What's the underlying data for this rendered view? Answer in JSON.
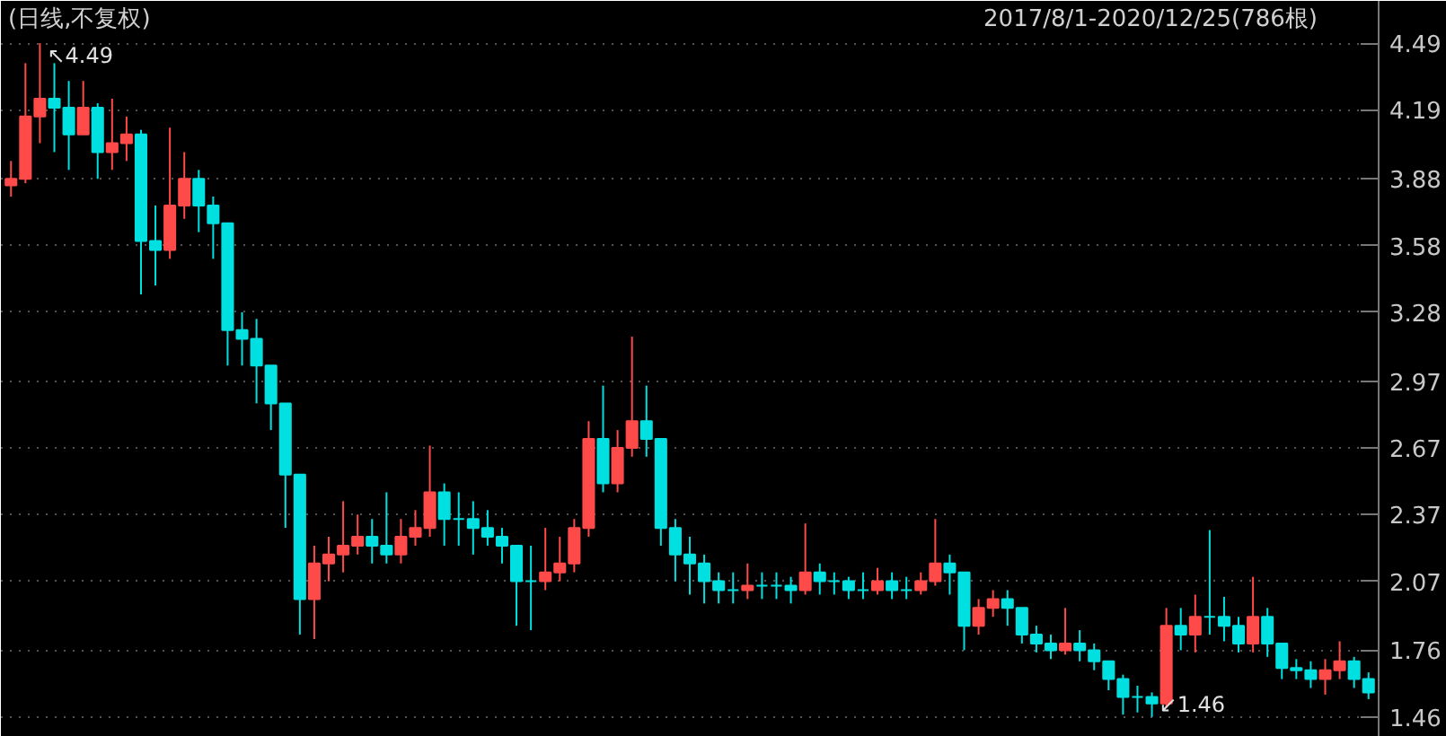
{
  "chart_data": {
    "type": "candlestick",
    "title": "(日线,不复权)",
    "annotations": [
      "2017/8/1-2020/12/25(786根)",
      "↖4.49",
      "↙1.46"
    ],
    "categories": [
      null,
      null,
      null,
      null,
      null,
      null,
      null,
      null,
      null,
      null,
      null,
      null,
      null,
      null,
      null,
      null,
      null,
      null,
      null,
      null,
      null,
      null,
      null,
      null,
      null,
      null,
      null,
      null,
      null,
      null,
      null,
      null,
      null,
      null,
      null,
      null,
      null,
      null,
      null,
      null,
      null,
      null,
      null,
      null,
      null,
      null,
      null,
      null,
      null,
      null,
      null,
      null,
      null,
      null,
      null,
      null,
      null,
      null,
      null,
      null,
      null,
      null,
      null,
      null,
      null,
      null,
      null,
      null,
      null,
      null,
      null,
      null,
      null,
      null,
      null,
      null,
      null,
      null,
      null,
      null,
      null,
      null,
      null,
      null,
      null,
      null,
      null,
      null,
      null,
      null,
      null,
      null,
      null,
      null,
      null
    ],
    "ohlc": [
      [
        3.85,
        3.96,
        3.8,
        3.88
      ],
      [
        3.88,
        4.4,
        3.86,
        4.16
      ],
      [
        4.16,
        4.49,
        4.04,
        4.24
      ],
      [
        4.24,
        4.4,
        4.0,
        4.2
      ],
      [
        4.2,
        4.32,
        3.92,
        4.08
      ],
      [
        4.08,
        4.32,
        4.08,
        4.2
      ],
      [
        4.2,
        4.22,
        3.88,
        4.0
      ],
      [
        4.0,
        4.24,
        3.92,
        4.04
      ],
      [
        4.04,
        4.16,
        3.96,
        4.08
      ],
      [
        4.08,
        4.1,
        3.36,
        3.6
      ],
      [
        3.6,
        3.76,
        3.4,
        3.56
      ],
      [
        3.56,
        4.11,
        3.52,
        3.76
      ],
      [
        3.76,
        4.0,
        3.7,
        3.88
      ],
      [
        3.88,
        3.92,
        3.64,
        3.76
      ],
      [
        3.76,
        3.8,
        3.52,
        3.68
      ],
      [
        3.68,
        3.68,
        3.04,
        3.2
      ],
      [
        3.2,
        3.28,
        3.04,
        3.16
      ],
      [
        3.16,
        3.25,
        2.87,
        3.04
      ],
      [
        3.04,
        3.04,
        2.75,
        2.87
      ],
      [
        2.87,
        2.87,
        2.31,
        2.55
      ],
      [
        2.55,
        2.55,
        1.83,
        1.99
      ],
      [
        1.99,
        2.23,
        1.81,
        2.15
      ],
      [
        2.15,
        2.27,
        2.07,
        2.19
      ],
      [
        2.19,
        2.43,
        2.11,
        2.23
      ],
      [
        2.23,
        2.37,
        2.19,
        2.27
      ],
      [
        2.27,
        2.35,
        2.15,
        2.23
      ],
      [
        2.23,
        2.47,
        2.15,
        2.19
      ],
      [
        2.19,
        2.35,
        2.15,
        2.27
      ],
      [
        2.27,
        2.39,
        2.23,
        2.31
      ],
      [
        2.31,
        2.68,
        2.27,
        2.47
      ],
      [
        2.47,
        2.51,
        2.23,
        2.35
      ],
      [
        2.35,
        2.47,
        2.23,
        2.35
      ],
      [
        2.35,
        2.43,
        2.19,
        2.31
      ],
      [
        2.31,
        2.39,
        2.23,
        2.27
      ],
      [
        2.27,
        2.31,
        2.15,
        2.23
      ],
      [
        2.23,
        2.23,
        1.87,
        2.07
      ],
      [
        2.07,
        2.23,
        1.85,
        2.07
      ],
      [
        2.07,
        2.31,
        2.03,
        2.11
      ],
      [
        2.11,
        2.27,
        2.07,
        2.15
      ],
      [
        2.15,
        2.35,
        2.11,
        2.31
      ],
      [
        2.31,
        2.79,
        2.27,
        2.71
      ],
      [
        2.71,
        2.95,
        2.47,
        2.51
      ],
      [
        2.51,
        2.75,
        2.47,
        2.67
      ],
      [
        2.67,
        3.17,
        2.63,
        2.79
      ],
      [
        2.79,
        2.95,
        2.63,
        2.71
      ],
      [
        2.71,
        2.71,
        2.23,
        2.31
      ],
      [
        2.31,
        2.35,
        2.07,
        2.19
      ],
      [
        2.19,
        2.27,
        2.01,
        2.15
      ],
      [
        2.15,
        2.19,
        1.97,
        2.07
      ],
      [
        2.07,
        2.11,
        1.97,
        2.03
      ],
      [
        2.03,
        2.11,
        1.97,
        2.03
      ],
      [
        2.03,
        2.15,
        1.99,
        2.05
      ],
      [
        2.05,
        2.11,
        1.99,
        2.05
      ],
      [
        2.05,
        2.11,
        1.99,
        2.05
      ],
      [
        2.05,
        2.09,
        1.97,
        2.03
      ],
      [
        2.03,
        2.33,
        2.01,
        2.11
      ],
      [
        2.11,
        2.15,
        2.01,
        2.07
      ],
      [
        2.07,
        2.11,
        2.01,
        2.07
      ],
      [
        2.07,
        2.09,
        1.99,
        2.03
      ],
      [
        2.03,
        2.11,
        1.99,
        2.03
      ],
      [
        2.03,
        2.13,
        2.01,
        2.07
      ],
      [
        2.07,
        2.11,
        1.99,
        2.03
      ],
      [
        2.03,
        2.09,
        1.99,
        2.03
      ],
      [
        2.03,
        2.11,
        2.01,
        2.07
      ],
      [
        2.07,
        2.35,
        2.05,
        2.15
      ],
      [
        2.15,
        2.19,
        2.01,
        2.11
      ],
      [
        2.11,
        2.11,
        1.76,
        1.87
      ],
      [
        1.87,
        1.99,
        1.83,
        1.95
      ],
      [
        1.95,
        2.03,
        1.91,
        1.99
      ],
      [
        1.99,
        2.03,
        1.87,
        1.95
      ],
      [
        1.95,
        1.95,
        1.79,
        1.83
      ],
      [
        1.83,
        1.87,
        1.75,
        1.79
      ],
      [
        1.79,
        1.83,
        1.72,
        1.76
      ],
      [
        1.76,
        1.95,
        1.74,
        1.79
      ],
      [
        1.79,
        1.85,
        1.71,
        1.76
      ],
      [
        1.76,
        1.79,
        1.67,
        1.71
      ],
      [
        1.71,
        1.71,
        1.58,
        1.63
      ],
      [
        1.63,
        1.65,
        1.47,
        1.55
      ],
      [
        1.55,
        1.6,
        1.48,
        1.55
      ],
      [
        1.55,
        1.57,
        1.46,
        1.52
      ],
      [
        1.52,
        1.95,
        1.5,
        1.87
      ],
      [
        1.87,
        1.95,
        1.76,
        1.83
      ],
      [
        1.83,
        2.01,
        1.75,
        1.91
      ],
      [
        1.91,
        2.3,
        1.83,
        1.91
      ],
      [
        1.91,
        2.0,
        1.8,
        1.87
      ],
      [
        1.87,
        1.91,
        1.75,
        1.79
      ],
      [
        1.79,
        2.09,
        1.75,
        1.91
      ],
      [
        1.91,
        1.95,
        1.73,
        1.79
      ],
      [
        1.79,
        1.79,
        1.63,
        1.68
      ],
      [
        1.68,
        1.72,
        1.63,
        1.67
      ],
      [
        1.67,
        1.71,
        1.59,
        1.63
      ],
      [
        1.63,
        1.72,
        1.56,
        1.67
      ],
      [
        1.67,
        1.8,
        1.63,
        1.71
      ],
      [
        1.71,
        1.73,
        1.59,
        1.63
      ],
      [
        1.63,
        1.66,
        1.54,
        1.57
      ]
    ],
    "colors": [
      "#ff4a4a",
      "#ff4a4a",
      "#ff4a4a",
      "#00e0e0",
      "#00e0e0",
      "#ff4a4a",
      "#00e0e0",
      "#ff4a4a",
      "#ff4a4a",
      "#00e0e0",
      "#00e0e0",
      "#ff4a4a",
      "#ff4a4a",
      "#00e0e0",
      "#00e0e0",
      "#00e0e0",
      "#00e0e0",
      "#00e0e0",
      "#00e0e0",
      "#00e0e0",
      "#00e0e0",
      "#ff4a4a",
      "#ff4a4a",
      "#ff4a4a",
      "#ff4a4a",
      "#00e0e0",
      "#00e0e0",
      "#ff4a4a",
      "#ff4a4a",
      "#ff4a4a",
      "#00e0e0",
      "#00e0e0",
      "#00e0e0",
      "#00e0e0",
      "#00e0e0",
      "#00e0e0",
      "#00e0e0",
      "#ff4a4a",
      "#ff4a4a",
      "#ff4a4a",
      "#ff4a4a",
      "#00e0e0",
      "#ff4a4a",
      "#ff4a4a",
      "#00e0e0",
      "#00e0e0",
      "#00e0e0",
      "#00e0e0",
      "#00e0e0",
      "#00e0e0",
      "#00e0e0",
      "#ff4a4a",
      "#00e0e0",
      "#00e0e0",
      "#00e0e0",
      "#ff4a4a",
      "#00e0e0",
      "#00e0e0",
      "#00e0e0",
      "#00e0e0",
      "#ff4a4a",
      "#00e0e0",
      "#00e0e0",
      "#ff4a4a",
      "#ff4a4a",
      "#00e0e0",
      "#00e0e0",
      "#ff4a4a",
      "#ff4a4a",
      "#00e0e0",
      "#00e0e0",
      "#00e0e0",
      "#00e0e0",
      "#ff4a4a",
      "#00e0e0",
      "#00e0e0",
      "#00e0e0",
      "#00e0e0",
      "#00e0e0",
      "#00e0e0",
      "#ff4a4a",
      "#00e0e0",
      "#ff4a4a",
      "#00e0e0",
      "#00e0e0",
      "#00e0e0",
      "#ff4a4a",
      "#00e0e0",
      "#00e0e0",
      "#00e0e0",
      "#00e0e0",
      "#ff4a4a",
      "#ff4a4a",
      "#00e0e0",
      "#00e0e0"
    ],
    "ylim": [
      1.37,
      4.68
    ],
    "yticks": [
      1.46,
      1.76,
      2.07,
      2.37,
      2.67,
      2.97,
      3.28,
      3.58,
      3.88,
      4.19,
      4.49
    ],
    "grid": "y",
    "tick_labels": "y"
  }
}
